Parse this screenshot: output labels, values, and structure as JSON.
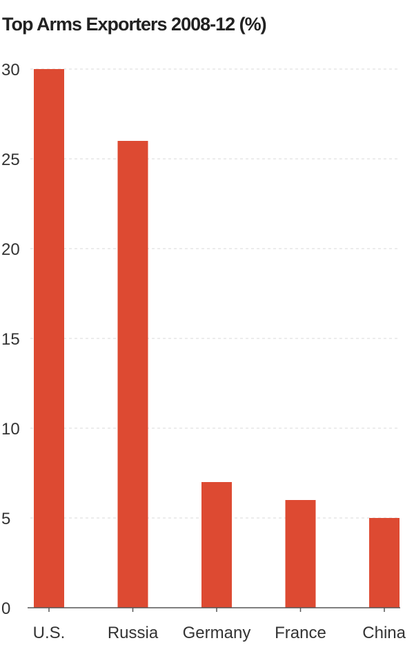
{
  "chart_data": {
    "type": "bar",
    "title": "Top Arms Exporters 2008-12 (%)",
    "categories": [
      "U.S.",
      "Russia",
      "Germany",
      "France",
      "China"
    ],
    "values": [
      30,
      26,
      7,
      6,
      5
    ],
    "ylim": [
      0,
      30
    ],
    "yticks": [
      0,
      5,
      10,
      15,
      20,
      25,
      30
    ],
    "xlabel": "",
    "ylabel": "",
    "grid": true,
    "legend": "none",
    "bar_color": "#dd4a32"
  }
}
